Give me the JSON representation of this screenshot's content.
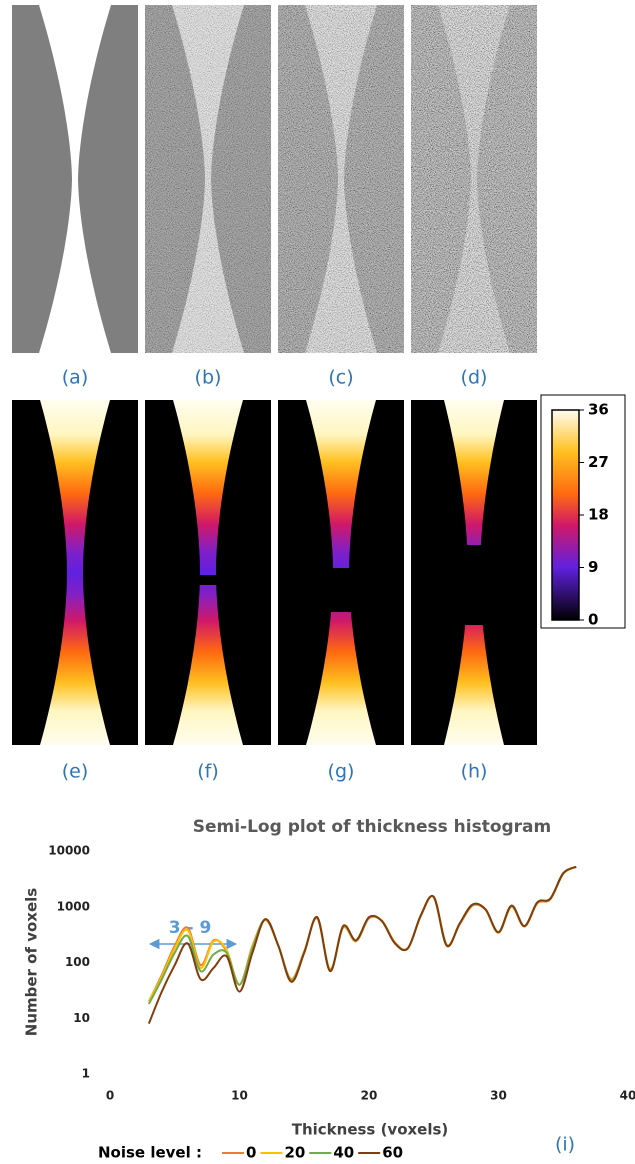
{
  "panels": {
    "labels": [
      "(a)",
      "(b)",
      "(c)",
      "(d)",
      "(e)",
      "(f)",
      "(g)",
      "(h)"
    ]
  },
  "colorbar": {
    "lim": [
      0,
      36
    ],
    "ticks": [
      0,
      9,
      18,
      27,
      36
    ]
  },
  "chart_data": {
    "type": "line",
    "title": "Semi-Log plot of thickness histogram",
    "x_label": "Thickness (voxels)",
    "y_label": "Number of voxels",
    "x": [
      3,
      4,
      5,
      6,
      7,
      8,
      9,
      10,
      11,
      12,
      13,
      14,
      15,
      16,
      17,
      18,
      19,
      20,
      21,
      22,
      23,
      24,
      25,
      26,
      27,
      28,
      29,
      30,
      31,
      32,
      33,
      34,
      35,
      36
    ],
    "series": [
      {
        "name": "0",
        "color": "#ed7d31",
        "values": [
          20,
          60,
          200,
          420,
          90,
          250,
          160,
          40,
          200,
          580,
          200,
          50,
          160,
          620,
          75,
          420,
          240,
          620,
          560,
          230,
          180,
          680,
          1500,
          210,
          480,
          1050,
          880,
          340,
          1000,
          440,
          1150,
          1350,
          3900,
          5200
        ]
      },
      {
        "name": "20",
        "color": "#ffc000",
        "values": [
          20,
          55,
          180,
          380,
          80,
          240,
          170,
          40,
          190,
          590,
          200,
          48,
          155,
          640,
          72,
          430,
          245,
          640,
          560,
          225,
          180,
          690,
          1500,
          205,
          490,
          1080,
          890,
          345,
          1030,
          445,
          1180,
          1380,
          3950,
          5200
        ]
      },
      {
        "name": "40",
        "color": "#70ad47",
        "values": [
          18,
          50,
          150,
          300,
          70,
          140,
          150,
          40,
          180,
          600,
          200,
          47,
          152,
          645,
          71,
          440,
          248,
          645,
          555,
          222,
          180,
          695,
          1500,
          202,
          495,
          1090,
          895,
          348,
          1040,
          448,
          1190,
          1390,
          3980,
          5200
        ]
      },
      {
        "name": "60",
        "color": "#843c0c",
        "values": [
          8,
          30,
          90,
          220,
          50,
          80,
          130,
          30,
          150,
          600,
          200,
          45,
          150,
          650,
          70,
          450,
          250,
          650,
          550,
          220,
          180,
          700,
          1500,
          200,
          500,
          1100,
          900,
          350,
          1050,
          450,
          1200,
          1400,
          4000,
          5200
        ]
      }
    ],
    "xlim": [
      0,
      40
    ],
    "xticks": [
      0,
      10,
      20,
      30,
      40
    ],
    "ylim": [
      1,
      10000
    ],
    "yticks": [
      1,
      10,
      100,
      1000,
      10000
    ],
    "yscale": "log",
    "grid": false,
    "legend_title": "Noise level :",
    "annotation": "3 - 9",
    "panel_label": "(i)"
  }
}
